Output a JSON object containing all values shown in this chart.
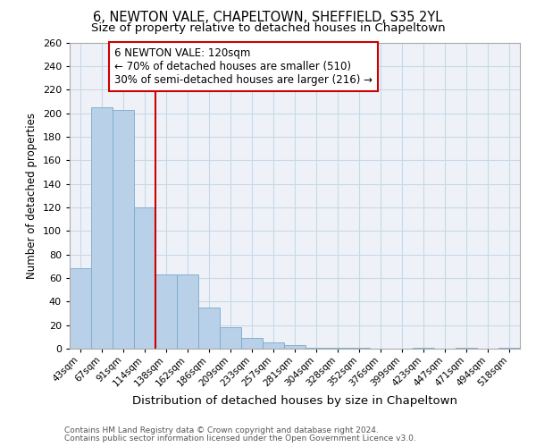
{
  "title": "6, NEWTON VALE, CHAPELTOWN, SHEFFIELD, S35 2YL",
  "subtitle": "Size of property relative to detached houses in Chapeltown",
  "xlabel": "Distribution of detached houses by size in Chapeltown",
  "ylabel": "Number of detached properties",
  "footnote1": "Contains HM Land Registry data © Crown copyright and database right 2024.",
  "footnote2": "Contains public sector information licensed under the Open Government Licence v3.0.",
  "bar_labels": [
    "43sqm",
    "67sqm",
    "91sqm",
    "114sqm",
    "138sqm",
    "162sqm",
    "186sqm",
    "209sqm",
    "233sqm",
    "257sqm",
    "281sqm",
    "304sqm",
    "328sqm",
    "352sqm",
    "376sqm",
    "399sqm",
    "423sqm",
    "447sqm",
    "471sqm",
    "494sqm",
    "518sqm"
  ],
  "bar_values": [
    68,
    205,
    203,
    120,
    63,
    63,
    35,
    18,
    9,
    5,
    3,
    1,
    1,
    1,
    0,
    0,
    1,
    0,
    1,
    0,
    1
  ],
  "bar_color": "#b8d0e8",
  "bar_edge_color": "#7aaac8",
  "vline_x": 3,
  "vline_color": "#cc0000",
  "annotation_line1": "6 NEWTON VALE: 120sqm",
  "annotation_line2": "← 70% of detached houses are smaller (510)",
  "annotation_line3": "30% of semi-detached houses are larger (216) →",
  "annotation_box_color": "#cc0000",
  "ylim": [
    0,
    260
  ],
  "yticks": [
    0,
    20,
    40,
    60,
    80,
    100,
    120,
    140,
    160,
    180,
    200,
    220,
    240,
    260
  ],
  "grid_color": "#c8d8e8",
  "bg_color": "#eef2f8",
  "title_fontsize": 10.5,
  "subtitle_fontsize": 9.5,
  "annot_fontsize": 8.5,
  "ylabel_fontsize": 8.5,
  "xlabel_fontsize": 9.5,
  "footnote_fontsize": 6.5
}
